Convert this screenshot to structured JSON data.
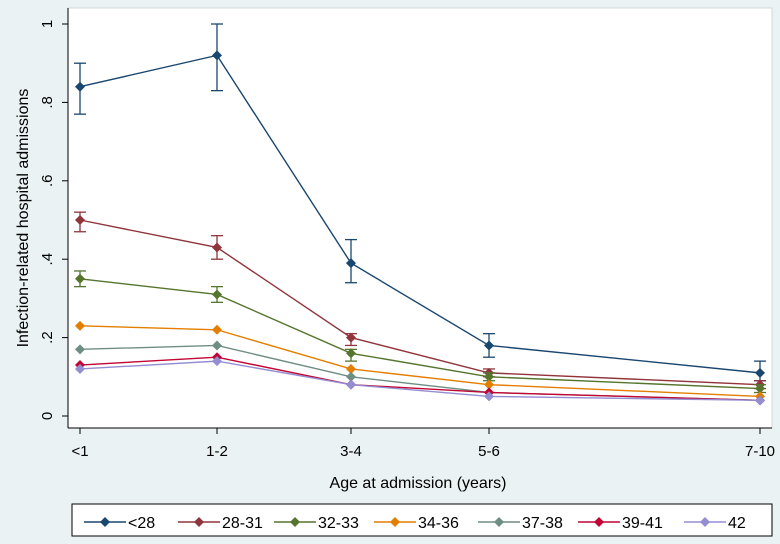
{
  "chart_data": {
    "type": "line",
    "xlabel": "Age at admission (years)",
    "ylabel": "Infection-related hospital admissions",
    "categories": [
      "<1",
      "1-2",
      "3-4",
      "5-6",
      "7-10"
    ],
    "ylim": [
      0,
      1
    ],
    "yticks": [
      0,
      0.2,
      0.4,
      0.6,
      0.8,
      1
    ],
    "ytick_labels": [
      "0",
      ".2",
      ".4",
      ".6",
      ".8",
      "1"
    ],
    "grid": false,
    "legend_position": "bottom",
    "series": [
      {
        "name": "<28",
        "color": "#1a476f",
        "marker": "diamond",
        "values": [
          0.84,
          0.92,
          0.39,
          0.18,
          0.11
        ],
        "ci_low": [
          0.77,
          0.83,
          0.34,
          0.15,
          0.09
        ],
        "ci_high": [
          0.9,
          1.0,
          0.45,
          0.21,
          0.14
        ]
      },
      {
        "name": "28-31",
        "color": "#90353b",
        "marker": "diamond",
        "values": [
          0.5,
          0.43,
          0.2,
          0.11,
          0.08
        ],
        "ci_low": [
          0.47,
          0.4,
          0.18,
          0.1,
          0.07
        ],
        "ci_high": [
          0.52,
          0.46,
          0.21,
          0.12,
          0.09
        ]
      },
      {
        "name": "32-33",
        "color": "#55752f",
        "marker": "diamond",
        "values": [
          0.35,
          0.31,
          0.16,
          0.1,
          0.07
        ],
        "ci_low": [
          0.33,
          0.29,
          0.14,
          0.09,
          0.06
        ],
        "ci_high": [
          0.37,
          0.33,
          0.17,
          0.11,
          0.08
        ]
      },
      {
        "name": "34-36",
        "color": "#e37e00",
        "marker": "diamond",
        "values": [
          0.23,
          0.22,
          0.12,
          0.08,
          0.05
        ],
        "ci_low": [
          0.23,
          0.22,
          0.11,
          0.08,
          0.05
        ],
        "ci_high": [
          0.24,
          0.23,
          0.12,
          0.08,
          0.06
        ]
      },
      {
        "name": "37-38",
        "color": "#6e8e84",
        "marker": "diamond",
        "values": [
          0.17,
          0.18,
          0.1,
          0.06,
          0.04
        ],
        "ci_low": [
          0.17,
          0.17,
          0.09,
          0.06,
          0.04
        ],
        "ci_high": [
          0.18,
          0.18,
          0.1,
          0.07,
          0.05
        ]
      },
      {
        "name": "39-41",
        "color": "#c10534",
        "marker": "diamond",
        "values": [
          0.13,
          0.15,
          0.08,
          0.06,
          0.04
        ],
        "ci_low": [
          0.13,
          0.14,
          0.08,
          0.05,
          0.04
        ],
        "ci_high": [
          0.14,
          0.15,
          0.09,
          0.06,
          0.04
        ]
      },
      {
        "name": "42",
        "color": "#938dd2",
        "marker": "diamond",
        "values": [
          0.12,
          0.14,
          0.08,
          0.05,
          0.04
        ],
        "ci_low": [
          0.11,
          0.14,
          0.08,
          0.05,
          0.03
        ],
        "ci_high": [
          0.12,
          0.15,
          0.08,
          0.06,
          0.04
        ]
      }
    ]
  }
}
